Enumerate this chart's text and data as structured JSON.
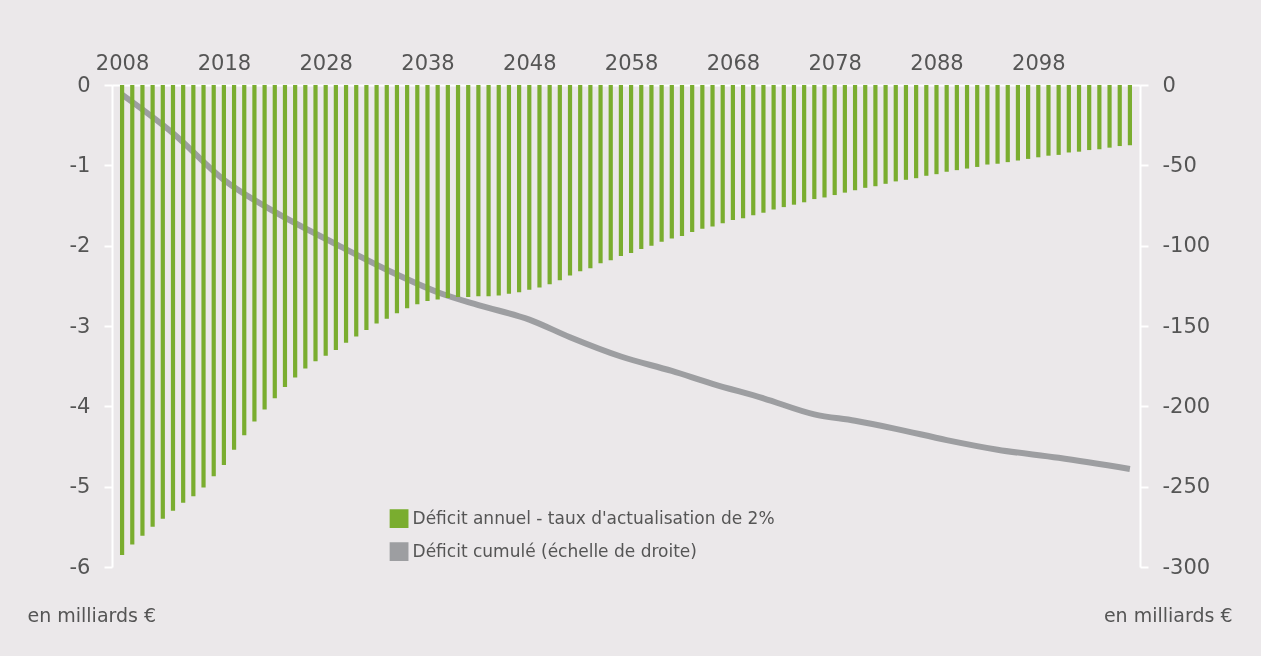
{
  "chart_data": {
    "type": "bar",
    "ylabel": "en milliards €",
    "y2label": "en milliards €",
    "x": [
      2008,
      2009,
      2010,
      2011,
      2012,
      2013,
      2014,
      2015,
      2016,
      2017,
      2018,
      2019,
      2020,
      2021,
      2022,
      2023,
      2024,
      2025,
      2026,
      2027,
      2028,
      2029,
      2030,
      2031,
      2032,
      2033,
      2034,
      2035,
      2036,
      2037,
      2038,
      2039,
      2040,
      2041,
      2042,
      2043,
      2044,
      2045,
      2046,
      2047,
      2048,
      2049,
      2050,
      2051,
      2052,
      2053,
      2054,
      2055,
      2056,
      2057,
      2058,
      2059,
      2060,
      2061,
      2062,
      2063,
      2064,
      2065,
      2066,
      2067,
      2068,
      2069,
      2070,
      2071,
      2072,
      2073,
      2074,
      2075,
      2076,
      2077,
      2078,
      2079,
      2080,
      2081,
      2082,
      2083,
      2084,
      2085,
      2086,
      2087,
      2088,
      2089,
      2090,
      2091,
      2092,
      2093,
      2094,
      2095,
      2096,
      2097,
      2098,
      2099,
      2100,
      2101,
      2102,
      2103,
      2104,
      2105,
      2106,
      2107
    ],
    "series": [
      {
        "name": "Déficit annuel - taux d'actualisation de 2%",
        "color": "#7aad2f",
        "values": [
          -5.85,
          -5.72,
          -5.61,
          -5.5,
          -5.4,
          -5.3,
          -5.2,
          -5.12,
          -5.01,
          -4.87,
          -4.73,
          -4.54,
          -4.36,
          -4.19,
          -4.04,
          -3.9,
          -3.76,
          -3.64,
          -3.53,
          -3.44,
          -3.37,
          -3.3,
          -3.21,
          -3.13,
          -3.05,
          -2.97,
          -2.91,
          -2.84,
          -2.78,
          -2.73,
          -2.69,
          -2.67,
          -2.65,
          -2.64,
          -2.64,
          -2.63,
          -2.63,
          -2.62,
          -2.6,
          -2.58,
          -2.55,
          -2.52,
          -2.48,
          -2.43,
          -2.37,
          -2.32,
          -2.28,
          -2.22,
          -2.18,
          -2.13,
          -2.09,
          -2.04,
          -2.0,
          -1.95,
          -1.91,
          -1.88,
          -1.83,
          -1.79,
          -1.76,
          -1.72,
          -1.68,
          -1.66,
          -1.62,
          -1.59,
          -1.55,
          -1.52,
          -1.49,
          -1.46,
          -1.42,
          -1.4,
          -1.37,
          -1.34,
          -1.31,
          -1.28,
          -1.26,
          -1.23,
          -1.2,
          -1.18,
          -1.16,
          -1.13,
          -1.11,
          -1.08,
          -1.06,
          -1.04,
          -1.02,
          -0.99,
          -0.98,
          -0.96,
          -0.94,
          -0.92,
          -0.9,
          -0.88,
          -0.87,
          -0.84,
          -0.83,
          -0.81,
          -0.8,
          -0.78,
          -0.76,
          -0.75
        ]
      },
      {
        "name": "Déficit cumulé (échelle de droite)",
        "type": "line",
        "axis": "y2",
        "color": "#9d9ea1",
        "x": [
          2008,
          2013,
          2018,
          2023,
          2029,
          2035,
          2039,
          2043,
          2048,
          2052,
          2057,
          2062,
          2066,
          2071,
          2076,
          2080,
          2084,
          2089,
          2094,
          2100,
          2107
        ],
        "values": [
          -6,
          -30,
          -59,
          -79,
          -99,
          -118,
          -129,
          -137,
          -146,
          -157,
          -169,
          -178,
          -186,
          -195,
          -205,
          -209,
          -214,
          -221,
          -227,
          -232,
          -239
        ]
      }
    ],
    "xlim": [
      2007.5,
      2107.5
    ],
    "xticks": [
      2008,
      2018,
      2028,
      2038,
      2048,
      2058,
      2068,
      2078,
      2088,
      2098
    ],
    "ylim": [
      -6,
      0
    ],
    "yticks": [
      0,
      -1,
      -2,
      -3,
      -4,
      -5,
      -6
    ],
    "y2lim": [
      -300,
      0
    ],
    "y2ticks": [
      0,
      -50,
      -100,
      -150,
      -200,
      -250,
      -300
    ],
    "legend": "bottom",
    "grid": false
  }
}
